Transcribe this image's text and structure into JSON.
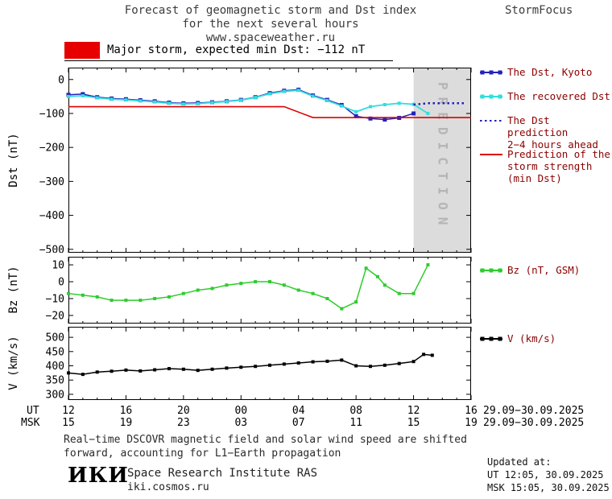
{
  "header": {
    "title_line1": "Forecast of geomagnetic storm and Dst index",
    "title_line2": "for the next several hours",
    "title_line3": "www.spaceweather.ru",
    "brand": "StormFocus"
  },
  "storm_banner": {
    "label": "Major storm, expected min Dst: −112 nT",
    "swatch_color": "#e60000"
  },
  "chart_data": [
    {
      "type": "line",
      "name": "dst-panel",
      "ylabel": "Dst (nT)",
      "xlim": [
        0,
        28
      ],
      "xticks": [
        0,
        4,
        8,
        12,
        16,
        20,
        24,
        28
      ],
      "ylim": [
        -500,
        0
      ],
      "ylim_draw": [
        -510,
        35
      ],
      "yticks": [
        0,
        -100,
        -200,
        -300,
        -400,
        -500
      ],
      "prediction_band": [
        24,
        28
      ],
      "prediction_label": "PREDICTION",
      "series": [
        {
          "name": "The Dst, Kyoto",
          "color": "#2222bb",
          "marker": "square",
          "msize": 5,
          "width": 1.5,
          "x": [
            0,
            1,
            2,
            3,
            4,
            5,
            6,
            7,
            8,
            9,
            10,
            11,
            12,
            13,
            14,
            15,
            16,
            17,
            18,
            19,
            20,
            21,
            22,
            23,
            24
          ],
          "y": [
            -45,
            -43,
            -52,
            -56,
            -58,
            -61,
            -64,
            -68,
            -70,
            -69,
            -67,
            -64,
            -60,
            -52,
            -40,
            -33,
            -30,
            -47,
            -60,
            -75,
            -108,
            -115,
            -118,
            -113,
            -100
          ]
        },
        {
          "name": "The recovered Dst",
          "color": "#33dddd",
          "marker": "square",
          "msize": 4,
          "width": 1.8,
          "x": [
            0,
            1,
            2,
            3,
            4,
            5,
            6,
            7,
            8,
            9,
            10,
            11,
            12,
            13,
            14,
            15,
            16,
            17,
            18,
            19,
            20,
            21,
            22,
            23,
            24,
            25
          ],
          "y": [
            -50,
            -48,
            -54,
            -58,
            -60,
            -63,
            -66,
            -70,
            -72,
            -71,
            -68,
            -65,
            -61,
            -53,
            -42,
            -35,
            -32,
            -49,
            -62,
            -78,
            -95,
            -80,
            -74,
            -70,
            -73,
            -100
          ]
        },
        {
          "name": "The Dst prediction 2−4 hours ahead",
          "color": "#2222bb",
          "style": "dotted",
          "width": 2.5,
          "x": [
            24,
            25,
            26,
            27,
            27.5
          ],
          "y": [
            -74,
            -70,
            -70,
            -70,
            -70
          ]
        },
        {
          "name": "Prediction of the storm strength (min Dst)",
          "color": "#dd0000",
          "width": 1.6,
          "x": [
            0,
            15,
            17,
            28
          ],
          "y": [
            -80,
            -80,
            -112,
            -112
          ]
        }
      ]
    },
    {
      "type": "line",
      "name": "bz-panel",
      "ylabel": "Bz (nT)",
      "xlim": [
        0,
        28
      ],
      "xticks": [
        0,
        4,
        8,
        12,
        16,
        20,
        24,
        28
      ],
      "ylim": [
        -20,
        10
      ],
      "ylim_draw": [
        -24.8,
        14.8
      ],
      "yticks": [
        10,
        0,
        -10,
        -20
      ],
      "series": [
        {
          "name": "Bz (nT, GSM)",
          "color": "#2ecc2e",
          "marker": "square",
          "msize": 4,
          "width": 1.5,
          "x": [
            0,
            1,
            2,
            3,
            4,
            5,
            6,
            7,
            8,
            9,
            10,
            11,
            12,
            13,
            14,
            15,
            16,
            17,
            18,
            19,
            20,
            20.7,
            21.5,
            22,
            23,
            24,
            25
          ],
          "y": [
            -7,
            -8,
            -9,
            -11,
            -11,
            -11,
            -10,
            -9,
            -7,
            -5,
            -4,
            -2,
            -1,
            0,
            0,
            -2,
            -5,
            -7,
            -10,
            -16,
            -12,
            8,
            3,
            -2,
            -7,
            -7,
            10
          ]
        }
      ]
    },
    {
      "type": "line",
      "name": "v-panel",
      "ylabel": "V (km/s)",
      "xlim": [
        0,
        28
      ],
      "xticks": [
        0,
        4,
        8,
        12,
        16,
        20,
        24,
        28
      ],
      "ylim": [
        300,
        500
      ],
      "ylim_draw": [
        280,
        537
      ],
      "yticks": [
        500,
        450,
        400,
        350,
        300
      ],
      "series": [
        {
          "name": "V (km/s)",
          "color": "#000000",
          "marker": "square",
          "msize": 4,
          "width": 1.5,
          "x": [
            0,
            1,
            2,
            3,
            4,
            5,
            6,
            7,
            8,
            9,
            10,
            11,
            12,
            13,
            14,
            15,
            16,
            17,
            18,
            19,
            20,
            21,
            22,
            23,
            24,
            24.7,
            25.3
          ],
          "y": [
            375,
            370,
            378,
            381,
            385,
            382,
            386,
            390,
            388,
            384,
            388,
            392,
            395,
            398,
            402,
            406,
            410,
            414,
            416,
            420,
            400,
            398,
            402,
            408,
            415,
            440,
            437
          ]
        }
      ]
    }
  ],
  "legend": [
    {
      "label": "The Dst, Kyoto",
      "color": "#2222bb",
      "style": "solid-squares"
    },
    {
      "label": "The recovered Dst",
      "color": "#33dddd",
      "style": "solid-squares"
    },
    {
      "label": "The Dst prediction\n2−4 hours ahead",
      "color": "#2222bb",
      "style": "dotted"
    },
    {
      "label": "Prediction of the\nstorm strength\n(min Dst)",
      "color": "#dd0000",
      "style": "solid"
    },
    {
      "label": "Bz (nT, GSM)",
      "color": "#2ecc2e",
      "style": "solid-squares"
    },
    {
      "label": "V (km/s)",
      "color": "#000000",
      "style": "solid-squares"
    }
  ],
  "xaxis": {
    "ut_label": "UT",
    "msk_label": "MSK",
    "ut_ticks": [
      "12",
      "16",
      "20",
      "00",
      "04",
      "08",
      "12",
      "16"
    ],
    "msk_ticks": [
      "15",
      "19",
      "23",
      "03",
      "07",
      "11",
      "15",
      "19"
    ],
    "ut_date": "29.09−30.09.2025",
    "msk_date": "29.09−30.09.2025"
  },
  "footer": {
    "note_line1": "Real−time DSCOVR magnetic field and solar wind speed are shifted",
    "note_line2": "forward, accounting for L1−Earth propagation",
    "updated_label": "Updated at:",
    "updated_ut": "UT  12:05, 30.09.2025",
    "updated_msk": "MSK 15:05, 30.09.2025",
    "logo": "ИКИ",
    "institute": "Space Research Institute RAS",
    "site": "iki.cosmos.ru"
  }
}
